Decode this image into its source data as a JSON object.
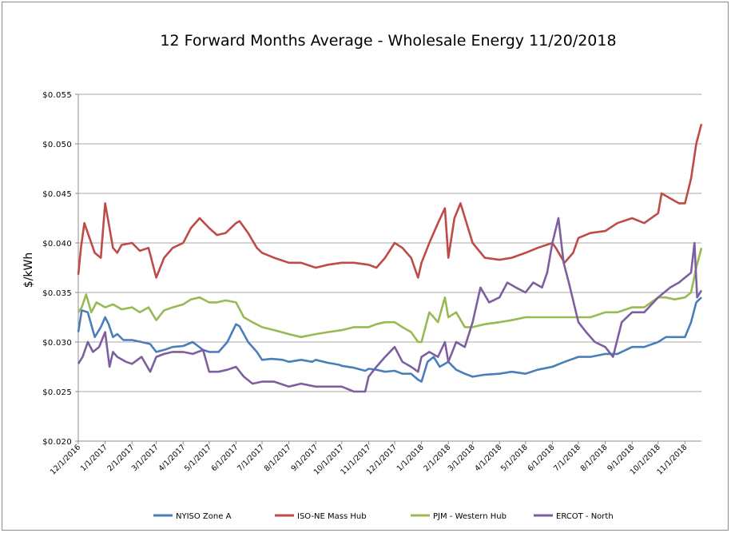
{
  "chart_data": {
    "type": "line",
    "title": "12 Forward Months Average - Wholesale Energy 11/20/2018",
    "xlabel": "",
    "ylabel": "$/kWh",
    "ylim": [
      0.02,
      0.055
    ],
    "y_ticks": [
      0.02,
      0.025,
      0.03,
      0.035,
      0.04,
      0.045,
      0.05,
      0.055
    ],
    "y_tick_labels": [
      "$0.020",
      "$0.025",
      "$0.030",
      "$0.035",
      "$0.040",
      "$0.045",
      "$0.050",
      "$0.055"
    ],
    "xlim": [
      "2016-12-01",
      "2018-11-20"
    ],
    "x_tick_labels": [
      "12/1/2016",
      "1/1/2017",
      "2/1/2017",
      "3/1/2017",
      "4/1/2017",
      "5/1/2017",
      "6/1/2017",
      "7/1/2017",
      "8/1/2017",
      "9/1/2017",
      "10/1/2017",
      "11/1/2017",
      "12/1/2017",
      "1/1/2018",
      "2/1/2018",
      "3/1/2018",
      "4/1/2018",
      "5/1/2018",
      "6/1/2018",
      "7/1/2018",
      "8/1/2018",
      "9/1/2018",
      "10/1/2018",
      "11/1/2018"
    ],
    "grid": true,
    "legend_position": "bottom",
    "series": [
      {
        "name": "NYISO Zone A",
        "color": "#4a7ebb",
        "x": [
          "2016-12-01",
          "2016-12-05",
          "2016-12-12",
          "2016-12-20",
          "2016-12-27",
          "2017-01-01",
          "2017-01-05",
          "2017-01-10",
          "2017-01-15",
          "2017-01-22",
          "2017-02-01",
          "2017-02-12",
          "2017-02-22",
          "2017-03-01",
          "2017-03-10",
          "2017-03-20",
          "2017-04-01",
          "2017-04-12",
          "2017-04-24",
          "2017-05-01",
          "2017-05-12",
          "2017-05-22",
          "2017-06-01",
          "2017-06-05",
          "2017-06-15",
          "2017-06-25",
          "2017-07-01",
          "2017-07-12",
          "2017-07-25",
          "2017-08-01",
          "2017-08-15",
          "2017-08-28",
          "2017-09-01",
          "2017-09-15",
          "2017-09-28",
          "2017-10-01",
          "2017-10-15",
          "2017-10-28",
          "2017-11-01",
          "2017-11-10",
          "2017-11-20",
          "2017-12-01",
          "2017-12-10",
          "2017-12-20",
          "2017-12-28",
          "2018-01-01",
          "2018-01-08",
          "2018-01-15",
          "2018-01-22",
          "2018-02-01",
          "2018-02-10",
          "2018-02-20",
          "2018-03-01",
          "2018-03-15",
          "2018-04-01",
          "2018-04-15",
          "2018-05-01",
          "2018-05-15",
          "2018-06-01",
          "2018-06-15",
          "2018-07-01",
          "2018-07-15",
          "2018-08-01",
          "2018-08-15",
          "2018-09-01",
          "2018-09-15",
          "2018-10-01",
          "2018-10-10",
          "2018-10-20",
          "2018-11-01",
          "2018-11-08",
          "2018-11-14",
          "2018-11-20"
        ],
        "y": [
          0.031,
          0.0332,
          0.033,
          0.0305,
          0.0315,
          0.0325,
          0.0318,
          0.0305,
          0.0308,
          0.0302,
          0.0302,
          0.03,
          0.0298,
          0.029,
          0.0292,
          0.0295,
          0.0296,
          0.03,
          0.0292,
          0.029,
          0.029,
          0.03,
          0.0318,
          0.0316,
          0.03,
          0.029,
          0.0282,
          0.0283,
          0.0282,
          0.028,
          0.0282,
          0.028,
          0.0282,
          0.0279,
          0.0277,
          0.0276,
          0.0274,
          0.0271,
          0.0273,
          0.0272,
          0.027,
          0.0271,
          0.0268,
          0.0268,
          0.0262,
          0.026,
          0.028,
          0.0285,
          0.0275,
          0.028,
          0.0272,
          0.0268,
          0.0265,
          0.0267,
          0.0268,
          0.027,
          0.0268,
          0.0272,
          0.0275,
          0.028,
          0.0285,
          0.0285,
          0.0288,
          0.0288,
          0.0295,
          0.0295,
          0.03,
          0.0305,
          0.0305,
          0.0305,
          0.032,
          0.034,
          0.0345
        ]
      },
      {
        "name": "ISO-NE Mass Hub",
        "color": "#be4b48",
        "x": [
          "2016-12-01",
          "2016-12-04",
          "2016-12-08",
          "2016-12-14",
          "2016-12-20",
          "2016-12-27",
          "2017-01-01",
          "2017-01-05",
          "2017-01-10",
          "2017-01-15",
          "2017-01-20",
          "2017-02-01",
          "2017-02-10",
          "2017-02-20",
          "2017-03-01",
          "2017-03-10",
          "2017-03-20",
          "2017-04-01",
          "2017-04-10",
          "2017-04-20",
          "2017-05-01",
          "2017-05-10",
          "2017-05-20",
          "2017-06-01",
          "2017-06-05",
          "2017-06-15",
          "2017-06-25",
          "2017-07-01",
          "2017-07-15",
          "2017-08-01",
          "2017-08-15",
          "2017-09-01",
          "2017-09-15",
          "2017-10-01",
          "2017-10-15",
          "2017-11-01",
          "2017-11-10",
          "2017-11-20",
          "2017-12-01",
          "2017-12-10",
          "2017-12-20",
          "2017-12-28",
          "2018-01-01",
          "2018-01-10",
          "2018-01-20",
          "2018-01-28",
          "2018-02-01",
          "2018-02-08",
          "2018-02-15",
          "2018-03-01",
          "2018-03-15",
          "2018-04-01",
          "2018-04-15",
          "2018-05-01",
          "2018-05-15",
          "2018-06-01",
          "2018-06-05",
          "2018-06-15",
          "2018-06-25",
          "2018-07-01",
          "2018-07-15",
          "2018-08-01",
          "2018-08-15",
          "2018-09-01",
          "2018-09-15",
          "2018-10-01",
          "2018-10-05",
          "2018-10-15",
          "2018-10-25",
          "2018-11-01",
          "2018-11-08",
          "2018-11-14",
          "2018-11-20"
        ],
        "y": [
          0.0368,
          0.0395,
          0.042,
          0.0405,
          0.039,
          0.0385,
          0.044,
          0.042,
          0.0395,
          0.039,
          0.0398,
          0.04,
          0.0392,
          0.0395,
          0.0365,
          0.0385,
          0.0395,
          0.04,
          0.0415,
          0.0425,
          0.0415,
          0.0408,
          0.041,
          0.042,
          0.0422,
          0.041,
          0.0395,
          0.039,
          0.0385,
          0.038,
          0.038,
          0.0375,
          0.0378,
          0.038,
          0.038,
          0.0378,
          0.0375,
          0.0385,
          0.04,
          0.0395,
          0.0385,
          0.0365,
          0.038,
          0.04,
          0.042,
          0.0435,
          0.0385,
          0.0425,
          0.044,
          0.04,
          0.0385,
          0.0383,
          0.0385,
          0.039,
          0.0395,
          0.04,
          0.0395,
          0.038,
          0.039,
          0.0405,
          0.041,
          0.0412,
          0.042,
          0.0425,
          0.042,
          0.043,
          0.045,
          0.0445,
          0.044,
          0.044,
          0.0465,
          0.05,
          0.052
        ]
      },
      {
        "name": "PJM - Western Hub",
        "color": "#98b954",
        "x": [
          "2016-12-01",
          "2016-12-05",
          "2016-12-10",
          "2016-12-16",
          "2016-12-22",
          "2017-01-01",
          "2017-01-10",
          "2017-01-20",
          "2017-02-01",
          "2017-02-10",
          "2017-02-20",
          "2017-03-01",
          "2017-03-10",
          "2017-03-20",
          "2017-04-01",
          "2017-04-10",
          "2017-04-20",
          "2017-05-01",
          "2017-05-10",
          "2017-05-20",
          "2017-06-01",
          "2017-06-10",
          "2017-06-20",
          "2017-07-01",
          "2017-07-15",
          "2017-08-01",
          "2017-08-15",
          "2017-09-01",
          "2017-09-15",
          "2017-10-01",
          "2017-10-15",
          "2017-11-01",
          "2017-11-10",
          "2017-11-20",
          "2017-12-01",
          "2017-12-10",
          "2017-12-20",
          "2017-12-28",
          "2018-01-01",
          "2018-01-10",
          "2018-01-20",
          "2018-01-28",
          "2018-02-01",
          "2018-02-10",
          "2018-02-20",
          "2018-03-01",
          "2018-03-15",
          "2018-04-01",
          "2018-04-15",
          "2018-05-01",
          "2018-05-15",
          "2018-06-01",
          "2018-06-15",
          "2018-07-01",
          "2018-07-15",
          "2018-08-01",
          "2018-08-15",
          "2018-09-01",
          "2018-09-15",
          "2018-10-01",
          "2018-10-10",
          "2018-10-20",
          "2018-11-01",
          "2018-11-08",
          "2018-11-14",
          "2018-11-20"
        ],
        "y": [
          0.033,
          0.0335,
          0.0348,
          0.033,
          0.034,
          0.0335,
          0.0338,
          0.0333,
          0.0335,
          0.033,
          0.0335,
          0.0322,
          0.0332,
          0.0335,
          0.0338,
          0.0343,
          0.0345,
          0.034,
          0.034,
          0.0342,
          0.034,
          0.0325,
          0.032,
          0.0315,
          0.0312,
          0.0308,
          0.0305,
          0.0308,
          0.031,
          0.0312,
          0.0315,
          0.0315,
          0.0318,
          0.032,
          0.032,
          0.0315,
          0.031,
          0.03,
          0.03,
          0.033,
          0.032,
          0.0345,
          0.0325,
          0.033,
          0.0315,
          0.0315,
          0.0318,
          0.032,
          0.0322,
          0.0325,
          0.0325,
          0.0325,
          0.0325,
          0.0325,
          0.0325,
          0.033,
          0.033,
          0.0335,
          0.0335,
          0.0345,
          0.0345,
          0.0343,
          0.0345,
          0.035,
          0.0375,
          0.0395
        ]
      },
      {
        "name": "ERCOT - North",
        "color": "#7d5fa0",
        "x": [
          "2016-12-01",
          "2016-12-06",
          "2016-12-12",
          "2016-12-18",
          "2016-12-25",
          "2017-01-01",
          "2017-01-06",
          "2017-01-10",
          "2017-01-15",
          "2017-01-25",
          "2017-02-01",
          "2017-02-12",
          "2017-02-22",
          "2017-03-01",
          "2017-03-10",
          "2017-03-20",
          "2017-04-01",
          "2017-04-12",
          "2017-04-24",
          "2017-05-01",
          "2017-05-12",
          "2017-05-22",
          "2017-06-01",
          "2017-06-10",
          "2017-06-20",
          "2017-07-01",
          "2017-07-15",
          "2017-08-01",
          "2017-08-15",
          "2017-09-01",
          "2017-09-15",
          "2017-10-01",
          "2017-10-15",
          "2017-10-28",
          "2017-11-01",
          "2017-11-10",
          "2017-11-20",
          "2017-12-01",
          "2017-12-10",
          "2017-12-20",
          "2017-12-28",
          "2018-01-01",
          "2018-01-10",
          "2018-01-20",
          "2018-01-28",
          "2018-02-01",
          "2018-02-10",
          "2018-02-20",
          "2018-03-01",
          "2018-03-10",
          "2018-03-20",
          "2018-04-01",
          "2018-04-10",
          "2018-04-20",
          "2018-05-01",
          "2018-05-10",
          "2018-05-20",
          "2018-05-26",
          "2018-06-01",
          "2018-06-08",
          "2018-06-14",
          "2018-06-20",
          "2018-07-01",
          "2018-07-10",
          "2018-07-20",
          "2018-08-01",
          "2018-08-10",
          "2018-08-20",
          "2018-09-01",
          "2018-09-15",
          "2018-10-01",
          "2018-10-15",
          "2018-10-25",
          "2018-11-01",
          "2018-11-08",
          "2018-11-12",
          "2018-11-15",
          "2018-11-20"
        ],
        "y": [
          0.0278,
          0.0285,
          0.03,
          0.029,
          0.0295,
          0.031,
          0.0275,
          0.029,
          0.0285,
          0.028,
          0.0278,
          0.0285,
          0.027,
          0.0285,
          0.0288,
          0.029,
          0.029,
          0.0288,
          0.0292,
          0.027,
          0.027,
          0.0272,
          0.0275,
          0.0265,
          0.0258,
          0.026,
          0.026,
          0.0255,
          0.0258,
          0.0255,
          0.0255,
          0.0255,
          0.025,
          0.025,
          0.0265,
          0.0275,
          0.0285,
          0.0295,
          0.028,
          0.0275,
          0.027,
          0.0285,
          0.029,
          0.0285,
          0.03,
          0.028,
          0.03,
          0.0295,
          0.032,
          0.0355,
          0.034,
          0.0345,
          0.036,
          0.0355,
          0.035,
          0.036,
          0.0355,
          0.037,
          0.04,
          0.0425,
          0.038,
          0.036,
          0.032,
          0.031,
          0.03,
          0.0295,
          0.0285,
          0.032,
          0.033,
          0.033,
          0.0345,
          0.0355,
          0.036,
          0.0365,
          0.037,
          0.04,
          0.0345,
          0.0352
        ]
      }
    ]
  }
}
